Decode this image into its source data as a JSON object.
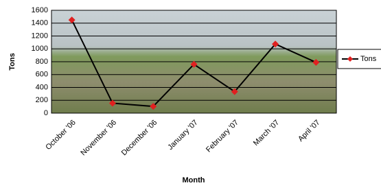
{
  "chart_data": {
    "type": "line",
    "categories": [
      "October '06",
      "November '06",
      "December '06",
      "January '07",
      "February '07",
      "March '07",
      "April '07"
    ],
    "series": [
      {
        "name": "Tons",
        "color": "#000000",
        "marker_color": "#e02020",
        "values": [
          1450,
          155,
          105,
          760,
          335,
          1075,
          790
        ]
      }
    ],
    "ylim": [
      0,
      1600
    ],
    "yticks": [
      0,
      200,
      400,
      600,
      800,
      1000,
      1200,
      1400,
      1600
    ],
    "xlabel": "Month",
    "ylabel": "Tons",
    "grid": true,
    "legend": "right"
  }
}
